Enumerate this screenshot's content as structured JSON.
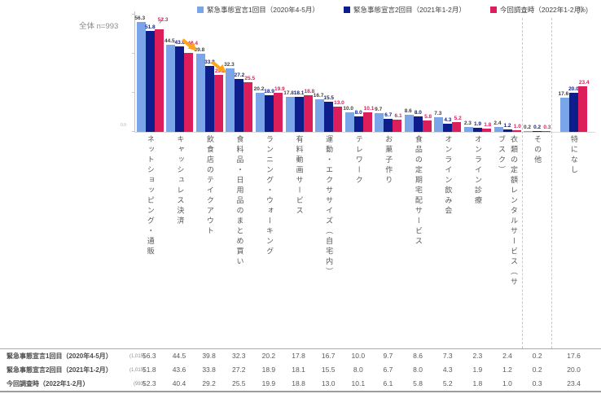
{
  "header": {
    "sample_note": "全体 n=993",
    "unit_label": "(%)",
    "axis_zero_label": "0.0"
  },
  "legend": [
    {
      "label": "緊急事態宣言1回目（2020年4-5月）",
      "color": "#7AA5E9"
    },
    {
      "label": "緊急事態宣言2回目（2021年1-2月）",
      "color": "#0D1E8C"
    },
    {
      "label": "今回調査時（2022年1-2月）",
      "color": "#DC1E5A"
    }
  ],
  "chart_data": {
    "type": "bar",
    "title": "",
    "unit": "%",
    "ylim": [
      0,
      60
    ],
    "yticks": [
      0,
      20,
      40,
      60
    ],
    "grid": false,
    "legend_position": "top",
    "categories": [
      "ネットショッピング・通販",
      "キャッシュレス決済",
      "飲食店のテイクアウト",
      "食料品・日用品のまとめ買い",
      "ランニング・ウォーキング",
      "有料動画サービス",
      "運動・エクササイズ（自宅内）",
      "テレワーク",
      "お菓子作り",
      "食品の定期宅配サービス",
      "オンライン飲み会",
      "オンライン診療",
      "衣類の定額レンタルサービス（サブスク）",
      "その他",
      "特になし"
    ],
    "series": [
      {
        "name": "緊急事態宣言1回目（2020年4-5月）",
        "n": "(1,015)",
        "color": "#7AA5E9",
        "label_color": "#3F3F3F",
        "values": [
          56.3,
          44.5,
          39.8,
          32.3,
          20.2,
          17.8,
          16.7,
          10.0,
          9.7,
          8.6,
          7.3,
          2.3,
          2.4,
          0.2,
          17.6
        ]
      },
      {
        "name": "緊急事態宣言2回目（2021年1-2月）",
        "n": "(1,015)",
        "color": "#0D1E8C",
        "label_color": "#0D1E8C",
        "values": [
          51.8,
          43.6,
          33.8,
          27.2,
          18.9,
          18.1,
          15.5,
          8.0,
          6.7,
          8.0,
          4.3,
          1.9,
          1.2,
          0.2,
          20.0
        ]
      },
      {
        "name": "今回調査時（2022年1-2月）",
        "n": "(993)",
        "color": "#DC1E5A",
        "label_color": "#DC1E5A",
        "values": [
          52.3,
          40.4,
          29.2,
          25.5,
          19.9,
          18.8,
          13.0,
          10.1,
          6.1,
          5.8,
          5.2,
          1.8,
          1.0,
          0.3,
          23.4
        ]
      }
    ],
    "separator_before_category_index": [
      13,
      14
    ],
    "annotations": {
      "decline_arrows": [
        {
          "category_index": 1,
          "points_to_series": "今回調査時（2022年1-2月）"
        },
        {
          "category_index": 2,
          "points_to_series": "今回調査時（2022年1-2月）"
        }
      ],
      "label_callouts_with_leader_line": [
        {
          "category_index": 0,
          "series_index": 2
        },
        {
          "category_index": 1,
          "series_index": 2
        }
      ]
    }
  },
  "table": {
    "rows": [
      {
        "label": "緊急事態宣言1回目（2020年4-5月）",
        "n": "(1,015)",
        "values": [
          56.3,
          44.5,
          39.8,
          32.3,
          20.2,
          17.8,
          16.7,
          10.0,
          9.7,
          8.6,
          7.3,
          2.3,
          2.4,
          0.2,
          17.6
        ]
      },
      {
        "label": "緊急事態宣言2回目（2021年1-2月）",
        "n": "(1,015)",
        "values": [
          51.8,
          43.6,
          33.8,
          27.2,
          18.9,
          18.1,
          15.5,
          8.0,
          6.7,
          8.0,
          4.3,
          1.9,
          1.2,
          0.2,
          20.0
        ]
      },
      {
        "label": "今回調査時（2022年1-2月）",
        "n": "(993)",
        "values": [
          52.3,
          40.4,
          29.2,
          25.5,
          19.9,
          18.8,
          13.0,
          10.1,
          6.1,
          5.8,
          5.2,
          1.8,
          1.0,
          0.3,
          23.4
        ]
      }
    ]
  }
}
